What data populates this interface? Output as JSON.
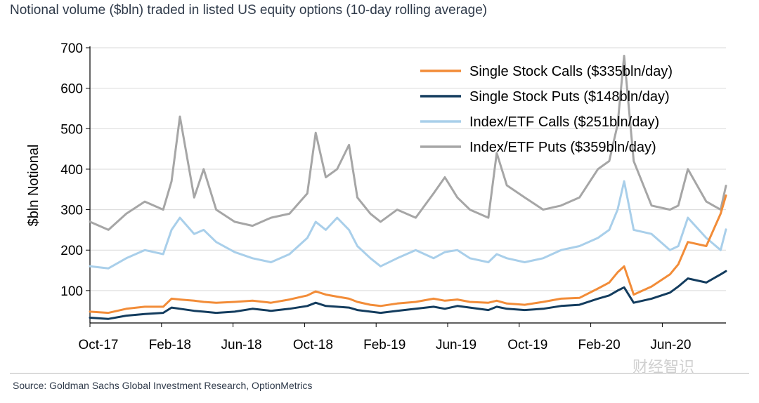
{
  "title": "Notional volume ($bln) traded in listed US equity options (10-day rolling average)",
  "source": "Source: Goldman Sachs Global Investment Research, OptionMetrics",
  "watermark": "财经智识",
  "chart_data": {
    "type": "line",
    "title": "Notional volume ($bln) traded in listed US equity options (10-day rolling average)",
    "xlabel": "",
    "ylabel": "$bln Notional",
    "ylim": [
      20,
      700
    ],
    "yticks": [
      100,
      200,
      300,
      400,
      500,
      600,
      700
    ],
    "xticks": [
      "Oct-17",
      "Feb-18",
      "Jun-18",
      "Oct-18",
      "Feb-19",
      "Jun-19",
      "Oct-19",
      "Feb-20",
      "Jun-20"
    ],
    "grid": true,
    "legend": "top-right",
    "x": [
      "2017-10-01",
      "2017-11-01",
      "2017-12-01",
      "2018-01-01",
      "2018-02-01",
      "2018-02-15",
      "2018-03-01",
      "2018-03-25",
      "2018-04-10",
      "2018-05-01",
      "2018-06-01",
      "2018-07-01",
      "2018-08-01",
      "2018-09-01",
      "2018-10-01",
      "2018-10-15",
      "2018-11-01",
      "2018-11-20",
      "2018-12-10",
      "2018-12-24",
      "2019-01-15",
      "2019-02-01",
      "2019-03-01",
      "2019-04-01",
      "2019-05-01",
      "2019-05-20",
      "2019-06-10",
      "2019-07-01",
      "2019-08-01",
      "2019-08-15",
      "2019-09-01",
      "2019-10-01",
      "2019-11-01",
      "2019-12-01",
      "2020-01-01",
      "2020-02-01",
      "2020-02-20",
      "2020-03-05",
      "2020-03-16",
      "2020-04-01",
      "2020-05-01",
      "2020-06-01",
      "2020-06-15",
      "2020-07-01",
      "2020-08-01",
      "2020-08-25",
      "2020-09-03"
    ],
    "series": [
      {
        "name": "Single Stock Calls ($335bln/day)",
        "color": "#f28c38",
        "values": [
          48,
          45,
          55,
          60,
          60,
          80,
          78,
          75,
          72,
          70,
          72,
          75,
          70,
          78,
          88,
          98,
          90,
          85,
          80,
          72,
          65,
          62,
          68,
          72,
          80,
          75,
          78,
          72,
          70,
          75,
          68,
          65,
          72,
          80,
          82,
          105,
          120,
          145,
          160,
          90,
          110,
          140,
          165,
          220,
          210,
          290,
          335
        ]
      },
      {
        "name": "Single Stock Puts ($148bln/day)",
        "color": "#133c5e",
        "values": [
          33,
          30,
          38,
          42,
          45,
          58,
          55,
          50,
          48,
          45,
          48,
          55,
          50,
          55,
          62,
          70,
          62,
          60,
          58,
          52,
          48,
          45,
          50,
          55,
          60,
          55,
          62,
          58,
          52,
          60,
          55,
          52,
          55,
          62,
          65,
          80,
          88,
          100,
          108,
          70,
          80,
          95,
          110,
          130,
          120,
          140,
          148
        ]
      },
      {
        "name": "Index/ETF Calls ($251bln/day)",
        "color": "#a9cfea",
        "values": [
          160,
          155,
          180,
          200,
          190,
          250,
          280,
          240,
          250,
          220,
          195,
          180,
          170,
          190,
          230,
          270,
          250,
          280,
          250,
          210,
          180,
          160,
          180,
          200,
          180,
          195,
          200,
          180,
          170,
          190,
          180,
          170,
          180,
          200,
          210,
          230,
          250,
          300,
          370,
          250,
          240,
          200,
          210,
          280,
          230,
          200,
          251
        ]
      },
      {
        "name": "Index/ETF Puts ($359bln/day)",
        "color": "#a6a6a6",
        "values": [
          270,
          250,
          290,
          320,
          300,
          370,
          530,
          330,
          400,
          300,
          270,
          260,
          280,
          290,
          340,
          490,
          380,
          400,
          460,
          330,
          290,
          270,
          300,
          280,
          340,
          380,
          330,
          300,
          280,
          440,
          360,
          330,
          300,
          310,
          330,
          400,
          420,
          510,
          680,
          420,
          310,
          300,
          310,
          400,
          320,
          300,
          359
        ]
      }
    ]
  }
}
